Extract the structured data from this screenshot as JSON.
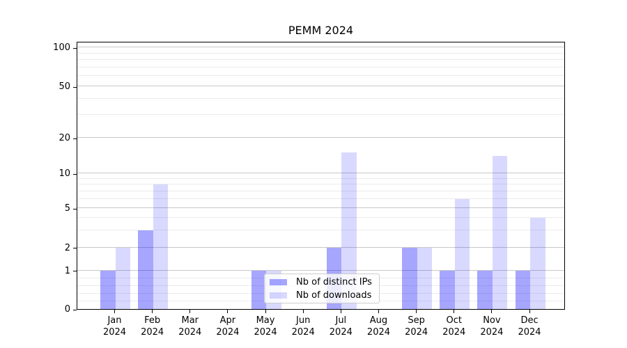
{
  "chart_data": {
    "type": "bar",
    "title": "PEMM 2024",
    "categories": [
      "Jan",
      "Feb",
      "Mar",
      "Apr",
      "May",
      "Jun",
      "Jul",
      "Aug",
      "Sep",
      "Oct",
      "Nov",
      "Dec"
    ],
    "category_year": "2024",
    "series": [
      {
        "name": "Nb of distinct IPs",
        "color": "#a5a5f6",
        "rgba": "rgba(0,0,255,0.35)",
        "values": [
          1,
          3,
          0,
          0,
          1,
          0,
          2,
          0,
          2,
          1,
          1,
          1
        ]
      },
      {
        "name": "Nb of downloads",
        "color": "#dcdcfa",
        "rgba": "rgba(0,0,255,0.15)",
        "values": [
          2,
          8,
          0,
          0,
          1,
          0,
          15,
          0,
          2,
          6,
          14,
          4
        ]
      }
    ],
    "y_ticks": [
      0,
      1,
      2,
      5,
      10,
      20,
      50,
      100
    ],
    "y_scale": "symlog",
    "ylim": [
      0,
      120
    ],
    "xlabel": "",
    "ylabel": "",
    "grid": "on",
    "legend_position": "lower center"
  }
}
